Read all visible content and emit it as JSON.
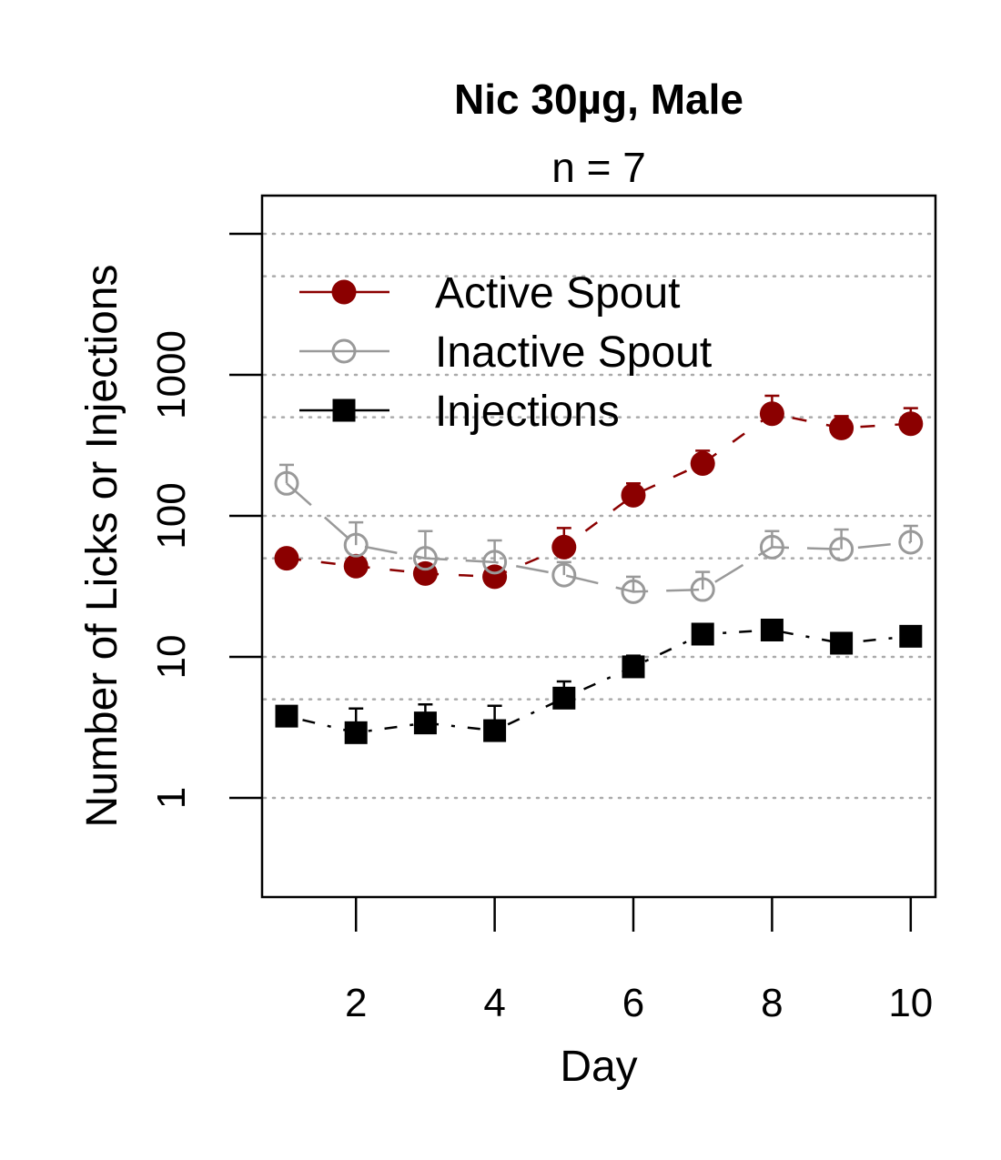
{
  "chart_data": {
    "type": "line",
    "title": "Nic 30µg, Male",
    "subtitle": "n = 7",
    "xlabel": "Day",
    "ylabel": "Number of Licks or Injections",
    "x": [
      1,
      2,
      3,
      4,
      5,
      6,
      7,
      8,
      9,
      10
    ],
    "x_ticks": [
      2,
      4,
      6,
      8,
      10
    ],
    "x_tick_labels": [
      "2",
      "4",
      "6",
      "8",
      "10"
    ],
    "xlim": [
      0.65,
      10.35
    ],
    "y_scale": "log",
    "ylim": [
      0.2,
      2500
    ],
    "y_ticks": [
      1,
      10,
      100,
      1000,
      10000
    ],
    "y_tick_labels": [
      "1",
      "10",
      "100",
      "1000",
      ""
    ],
    "y_gridlines": [
      1,
      5,
      10,
      50,
      100,
      500,
      1000,
      5000,
      10000
    ],
    "grid": "horizontal dotted",
    "legend_position": "top-left",
    "series": [
      {
        "name": "Active Spout",
        "color": "#8b0000",
        "marker": "filled-circle",
        "line": "dashed",
        "values": [
          50,
          44,
          39,
          37,
          60,
          140,
          235,
          530,
          420,
          450
        ],
        "error_upper": [
          58,
          50,
          43,
          42,
          82,
          170,
          290,
          710,
          510,
          580
        ]
      },
      {
        "name": "Inactive Spout",
        "color": "#999999",
        "marker": "open-circle",
        "line": "long-dashed",
        "values": [
          170,
          62,
          50,
          47,
          38,
          29,
          30,
          60,
          58,
          65
        ],
        "error_upper": [
          230,
          90,
          78,
          67,
          47,
          37,
          40,
          78,
          80,
          85
        ]
      },
      {
        "name": "Injections",
        "color": "#000000",
        "marker": "filled-square",
        "line": "dash-dot",
        "values": [
          3.8,
          2.9,
          3.4,
          3.0,
          5.1,
          8.5,
          14.5,
          15.5,
          12.5,
          14.0
        ],
        "error_upper": [
          4.3,
          4.3,
          4.6,
          4.5,
          6.7,
          10.2,
          16.5,
          17.5,
          14.0,
          15.5
        ]
      }
    ]
  }
}
